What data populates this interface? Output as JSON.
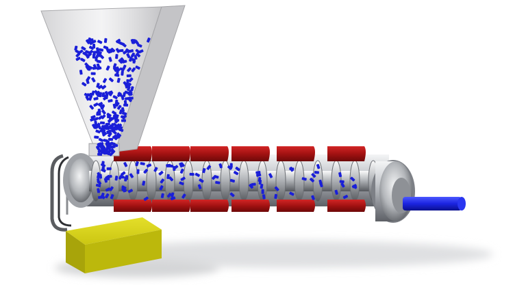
{
  "figure": {
    "subject": "extruder",
    "components": [
      {
        "id": "hopper",
        "icon": "hopper-icon"
      },
      {
        "id": "pellets",
        "icon": "pellet-icon"
      },
      {
        "id": "barrel",
        "icon": "barrel-icon"
      },
      {
        "id": "screw",
        "icon": "screw-icon"
      },
      {
        "id": "heater-bands",
        "icon": "heater-band-icon",
        "count": 6
      },
      {
        "id": "drive-belt",
        "icon": "belt-icon"
      },
      {
        "id": "motor",
        "icon": "motor-block-icon"
      },
      {
        "id": "die-end",
        "icon": "die-icon"
      },
      {
        "id": "extrudate",
        "icon": "extrudate-rod-icon"
      }
    ],
    "colors": {
      "pellet": "#1a1fd8",
      "extrudate": "#1b24e0",
      "heater": "#b01818",
      "motor": "#c9c400",
      "steel": "#b9bcc0",
      "hopper": "#d8d8da"
    }
  }
}
